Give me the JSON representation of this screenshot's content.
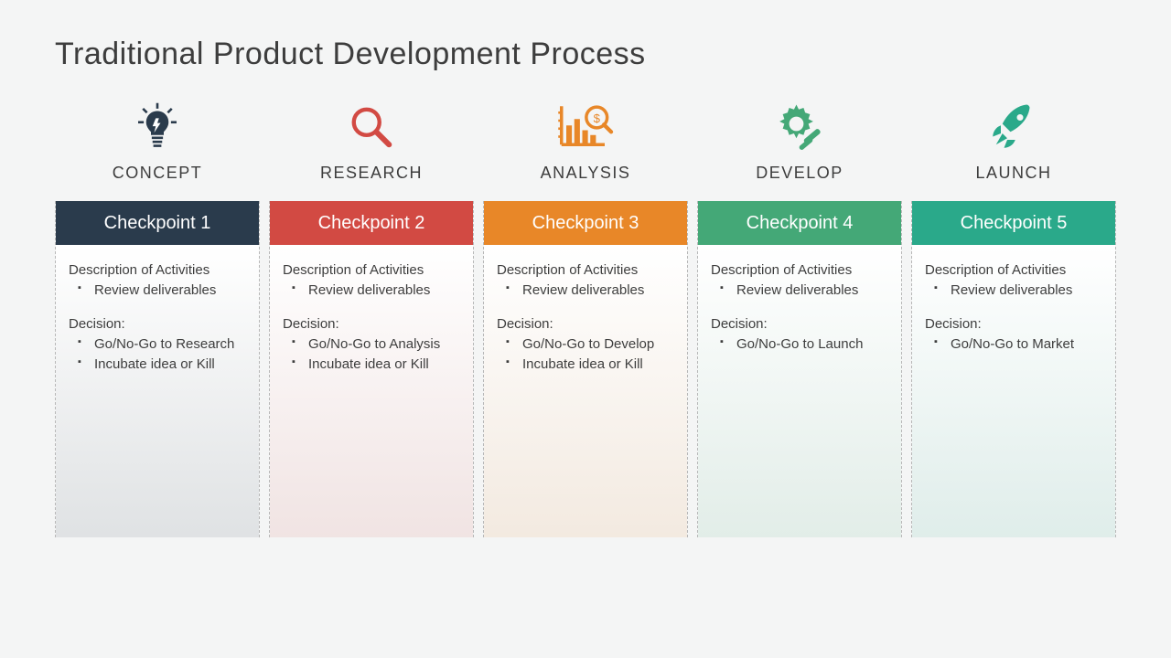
{
  "title": "Traditional Product Development Process",
  "background_color": "#f4f5f5",
  "text_color": "#3d3d3d",
  "stages": [
    {
      "label": "CONCEPT",
      "icon": "lightbulb",
      "icon_color": "#2a3b4c",
      "checkpoint_label": "Checkpoint 1",
      "checkpoint_bg": "#2a3b4c",
      "gradient_tint": "rgba(42,59,76,0.10)",
      "activities_label": "Description of Activities",
      "activities": [
        "Review deliverables"
      ],
      "decision_label": "Decision:",
      "decisions": [
        "Go/No-Go to Research",
        "Incubate idea or Kill"
      ]
    },
    {
      "label": "RESEARCH",
      "icon": "magnifier",
      "icon_color": "#d24a43",
      "checkpoint_label": "Checkpoint 2",
      "checkpoint_bg": "#d24a43",
      "gradient_tint": "rgba(210,74,67,0.10)",
      "activities_label": "Description of Activities",
      "activities": [
        "Review deliverables"
      ],
      "decision_label": "Decision:",
      "decisions": [
        "Go/No-Go to Analysis",
        "Incubate idea or Kill"
      ]
    },
    {
      "label": "ANALYSIS",
      "icon": "chart",
      "icon_color": "#e88728",
      "checkpoint_label": "Checkpoint 3",
      "checkpoint_bg": "#e88728",
      "gradient_tint": "rgba(232,135,40,0.10)",
      "activities_label": "Description of Activities",
      "activities": [
        "Review deliverables"
      ],
      "decision_label": "Decision:",
      "decisions": [
        "Go/No-Go to Develop",
        "Incubate idea or Kill"
      ]
    },
    {
      "label": "DEVELOP",
      "icon": "gear",
      "icon_color": "#44a877",
      "checkpoint_label": "Checkpoint 4",
      "checkpoint_bg": "#44a877",
      "gradient_tint": "rgba(68,168,119,0.10)",
      "activities_label": "Description of Activities",
      "activities": [
        "Review deliverables"
      ],
      "decision_label": "Decision:",
      "decisions": [
        "Go/No-Go to Launch"
      ]
    },
    {
      "label": "LAUNCH",
      "icon": "rocket",
      "icon_color": "#2aa98a",
      "checkpoint_label": "Checkpoint 5",
      "checkpoint_bg": "#2aa98a",
      "gradient_tint": "rgba(42,169,138,0.10)",
      "activities_label": "Description of Activities",
      "activities": [
        "Review deliverables"
      ],
      "decision_label": "Decision:",
      "decisions": [
        "Go/No-Go to Market"
      ]
    }
  ]
}
